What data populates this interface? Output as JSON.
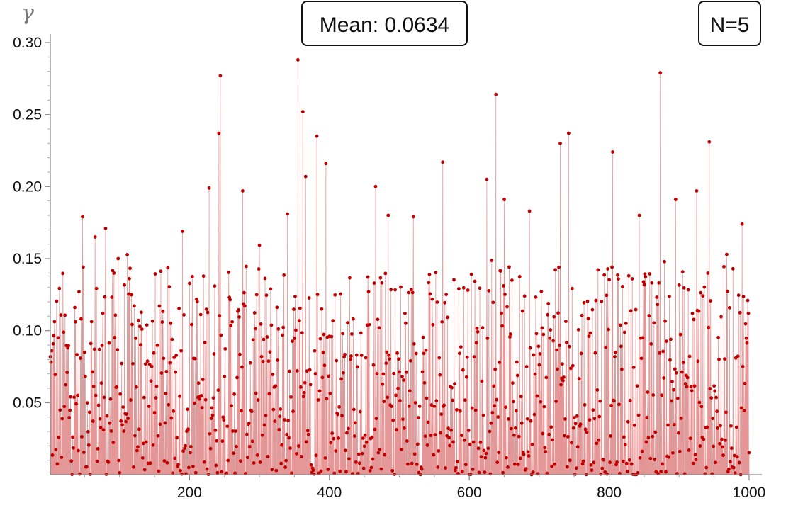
{
  "chart_data": {
    "type": "scatter",
    "ylabel": "γ",
    "xlabel": "",
    "xlim": [
      1,
      1000
    ],
    "ylim": [
      0,
      0.3
    ],
    "xticks": [
      "200",
      "400",
      "600",
      "800",
      "1000"
    ],
    "yticks": [
      "0.05",
      "0.10",
      "0.15",
      "0.20",
      "0.25",
      "0.30"
    ],
    "annotations": {
      "mean": "Mean: 0.0634",
      "n": "N=5"
    },
    "style": "filled-to-axis stems with point markers",
    "series": [
      {
        "color": "#c00000",
        "fill": "#d96a6a",
        "n_points": 1000,
        "mean": 0.0634,
        "peaks": [
          {
            "x": 47,
            "y": 0.179
          },
          {
            "x": 65,
            "y": 0.165
          },
          {
            "x": 80,
            "y": 0.171
          },
          {
            "x": 98,
            "y": 0.15
          },
          {
            "x": 190,
            "y": 0.169
          },
          {
            "x": 228,
            "y": 0.199
          },
          {
            "x": 242,
            "y": 0.237
          },
          {
            "x": 244,
            "y": 0.277
          },
          {
            "x": 276,
            "y": 0.197
          },
          {
            "x": 340,
            "y": 0.181
          },
          {
            "x": 355,
            "y": 0.288
          },
          {
            "x": 362,
            "y": 0.252
          },
          {
            "x": 366,
            "y": 0.207
          },
          {
            "x": 382,
            "y": 0.235
          },
          {
            "x": 395,
            "y": 0.216
          },
          {
            "x": 466,
            "y": 0.2
          },
          {
            "x": 484,
            "y": 0.18
          },
          {
            "x": 520,
            "y": 0.179
          },
          {
            "x": 562,
            "y": 0.217
          },
          {
            "x": 625,
            "y": 0.205
          },
          {
            "x": 638,
            "y": 0.264
          },
          {
            "x": 650,
            "y": 0.191
          },
          {
            "x": 686,
            "y": 0.183
          },
          {
            "x": 730,
            "y": 0.23
          },
          {
            "x": 742,
            "y": 0.237
          },
          {
            "x": 805,
            "y": 0.224
          },
          {
            "x": 843,
            "y": 0.18
          },
          {
            "x": 873,
            "y": 0.279
          },
          {
            "x": 895,
            "y": 0.191
          },
          {
            "x": 925,
            "y": 0.197
          },
          {
            "x": 943,
            "y": 0.231
          },
          {
            "x": 990,
            "y": 0.174
          },
          {
            "x": 998,
            "y": 0.121
          }
        ]
      }
    ]
  }
}
